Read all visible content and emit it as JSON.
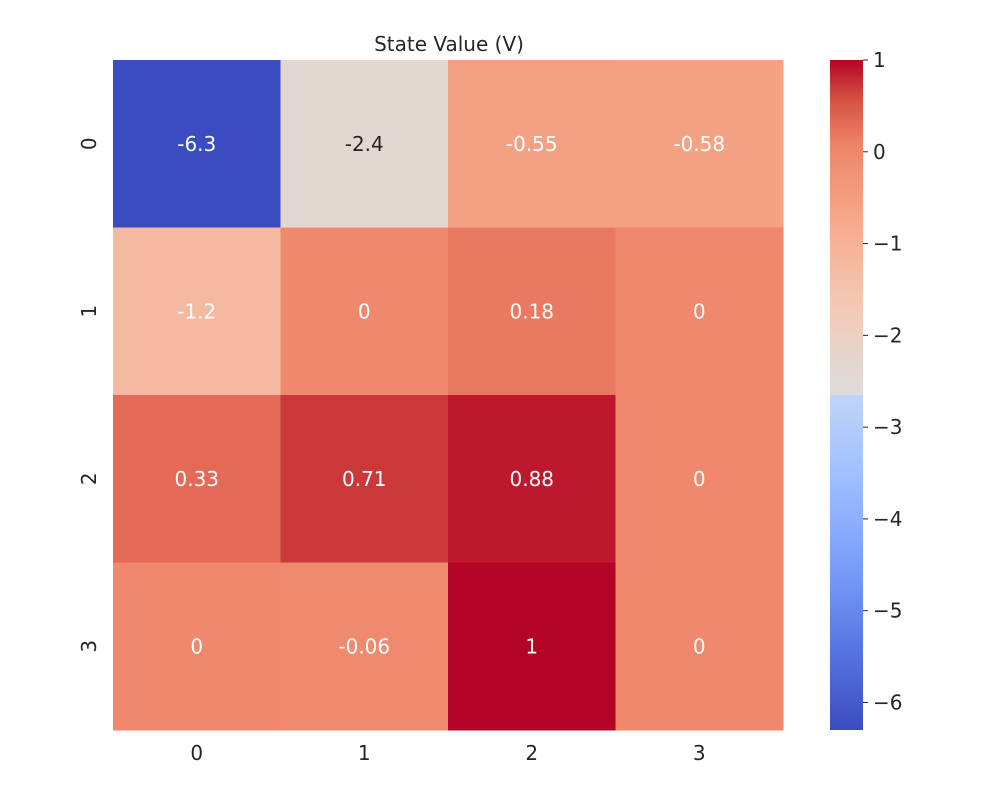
{
  "chart_data": {
    "type": "heatmap",
    "title": "State Value (V)",
    "xlabel": "",
    "ylabel": "",
    "x_categories": [
      "0",
      "1",
      "2",
      "3"
    ],
    "y_categories": [
      "0",
      "1",
      "2",
      "3"
    ],
    "values": [
      [
        -6.3,
        -2.4,
        -0.55,
        -0.58
      ],
      [
        -1.2,
        0,
        0.18,
        0
      ],
      [
        0.33,
        0.71,
        0.88,
        0
      ],
      [
        0,
        -0.06,
        1,
        0
      ]
    ],
    "annotations": [
      [
        "-6.3",
        "-2.4",
        "-0.55",
        "-0.58"
      ],
      [
        "-1.2",
        "0",
        "0.18",
        "0"
      ],
      [
        "0.33",
        "0.71",
        "0.88",
        "0"
      ],
      [
        "0",
        "-0.06",
        "1",
        "0"
      ]
    ],
    "colormap": "coolwarm",
    "vmin": -6.3,
    "vmax": 1,
    "colorbar_ticks": [
      1,
      0,
      -1,
      -2,
      -3,
      -4,
      -5,
      -6
    ],
    "colorbar_tick_labels": [
      "1",
      "0",
      "−1",
      "−2",
      "−3",
      "−4",
      "−5",
      "−6"
    ],
    "grid": false,
    "colors": {
      "cold": "#3b4cc0",
      "neutral": "#dddddd",
      "warm": "#b40426",
      "annotation_text": "#ffffff",
      "annotation_text_light_cell": "#262626",
      "tick_text": "#262626"
    }
  }
}
